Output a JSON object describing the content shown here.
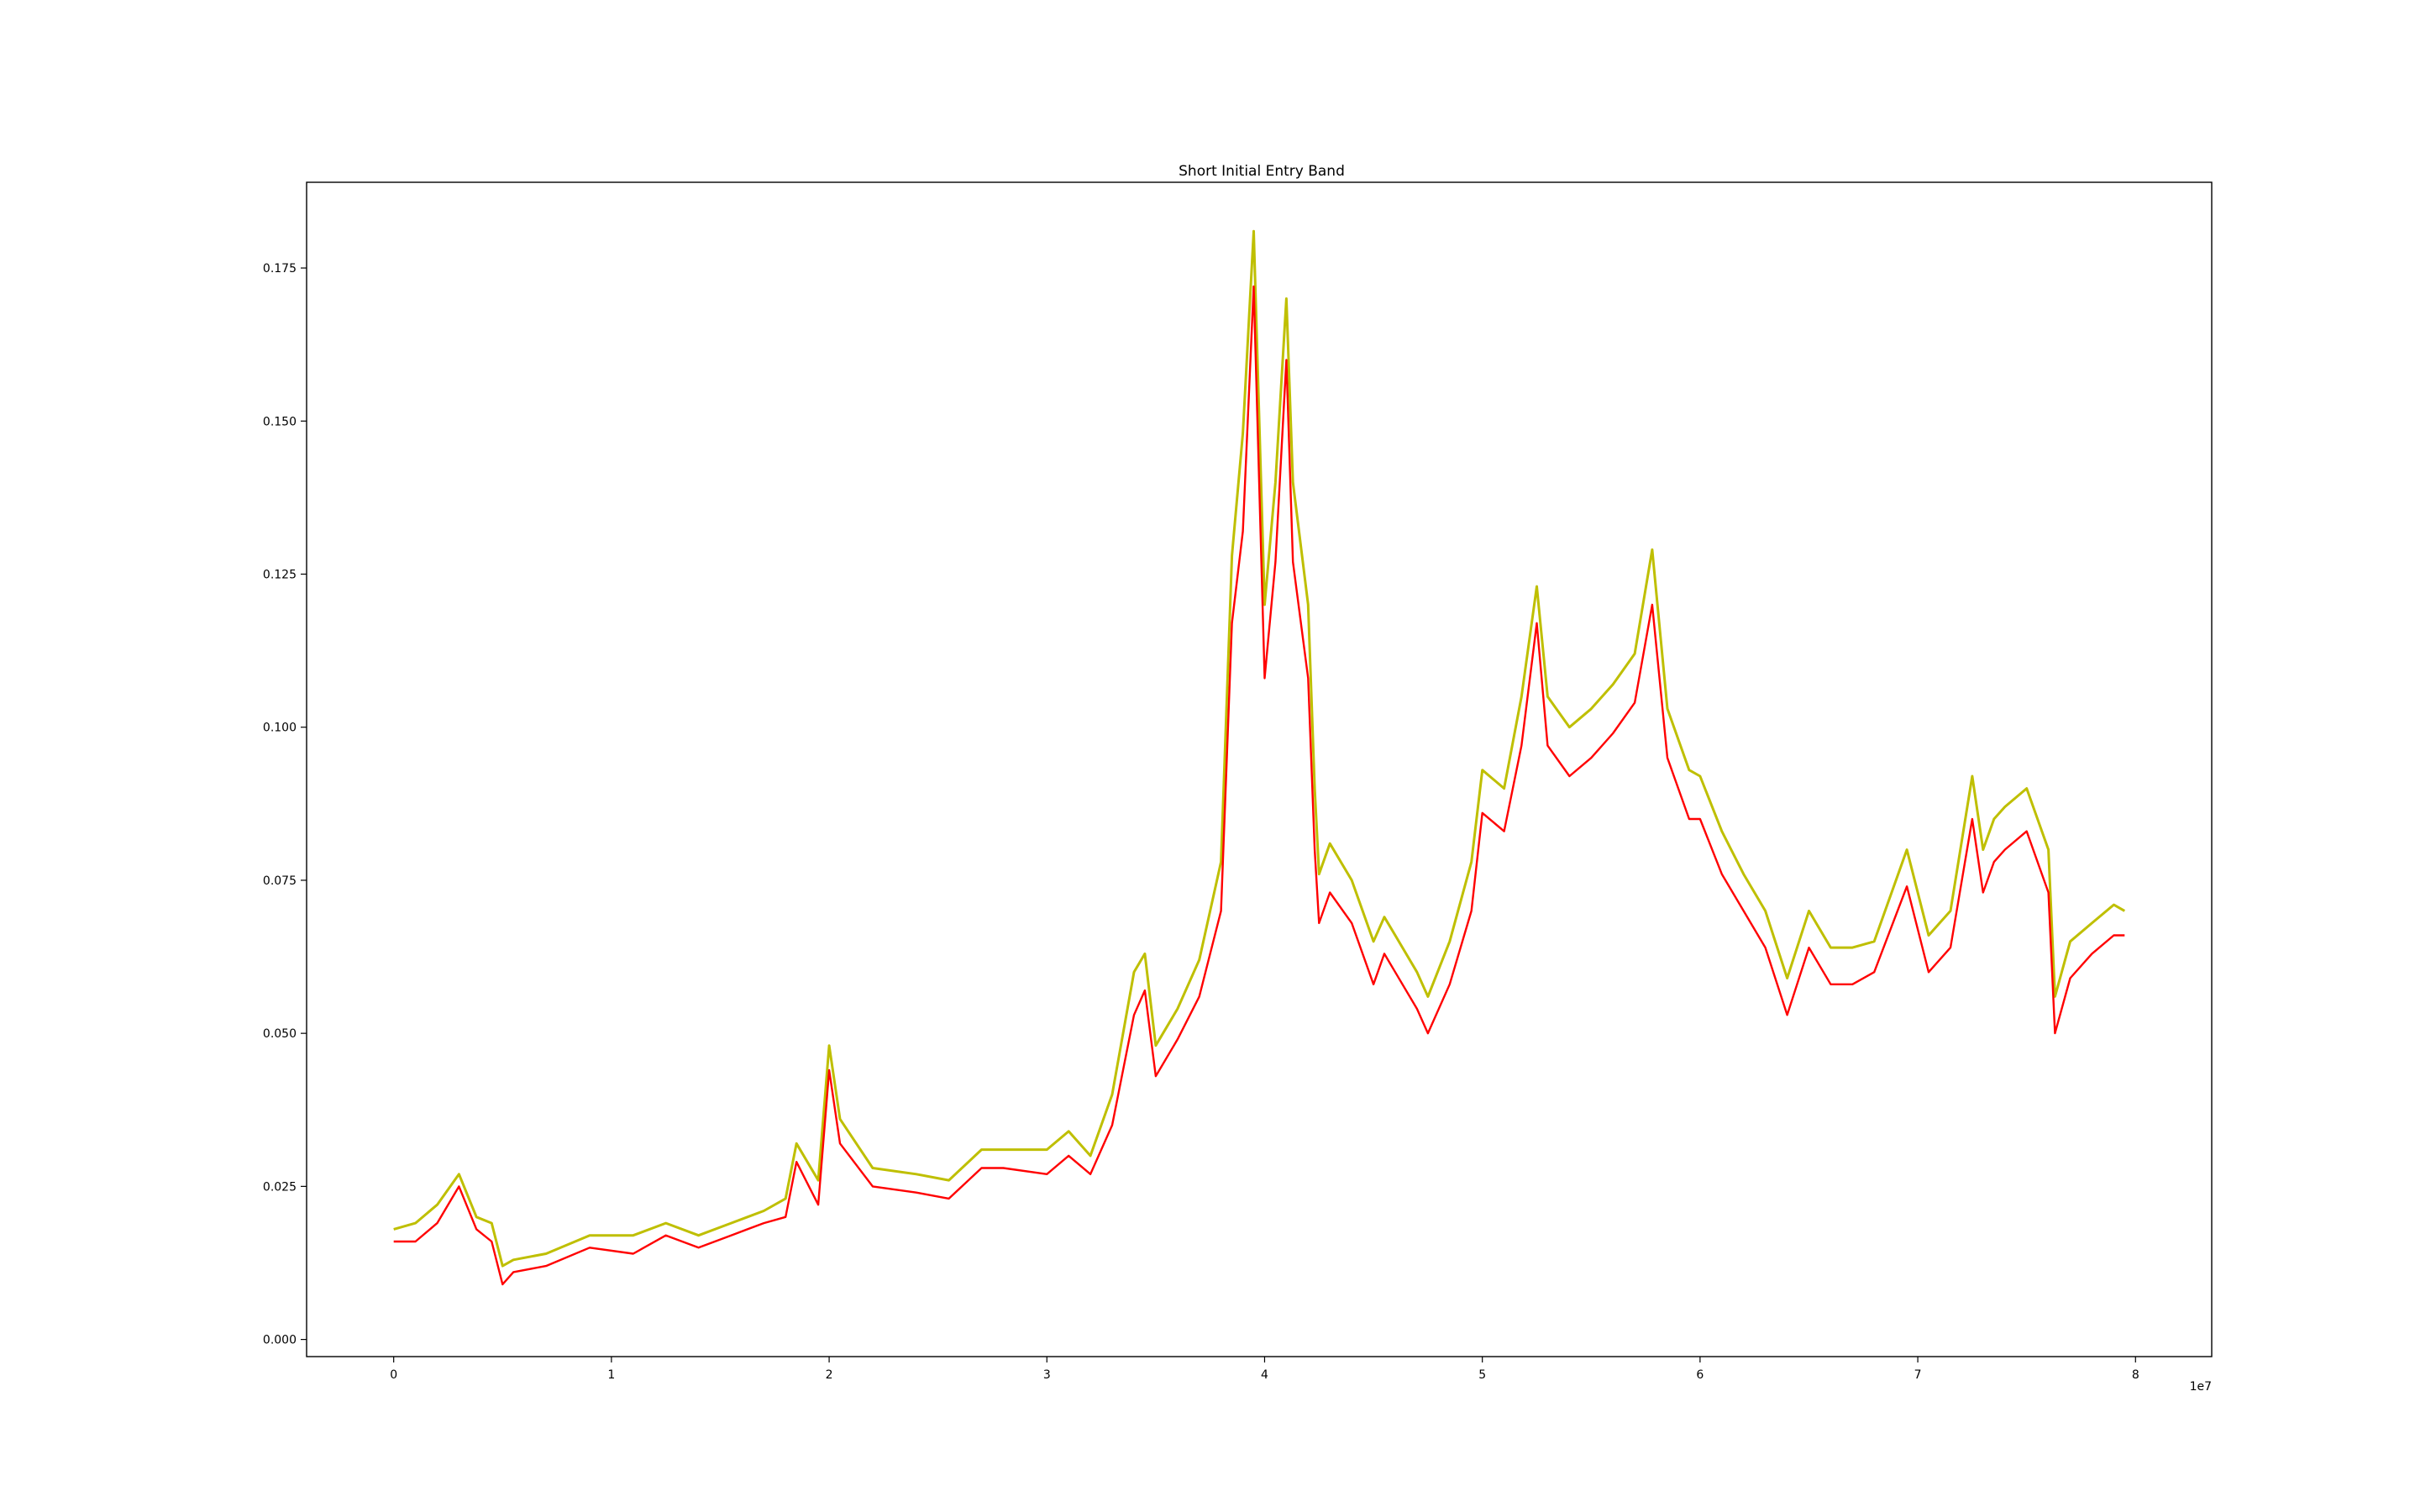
{
  "chart_data": {
    "type": "line",
    "title": "Short Initial Entry Band",
    "xlabel": "",
    "ylabel": "",
    "x_offset_label": "1e7",
    "xlim": [
      -0.4,
      8.35
    ],
    "ylim": [
      -0.0028,
      0.189
    ],
    "x_ticks": [
      0,
      1,
      2,
      3,
      4,
      5,
      6,
      7,
      8
    ],
    "x_tick_labels": [
      "0",
      "1",
      "2",
      "3",
      "4",
      "5",
      "6",
      "7",
      "8"
    ],
    "y_ticks": [
      0.0,
      0.025,
      0.05,
      0.075,
      0.1,
      0.125,
      0.15,
      0.175
    ],
    "y_tick_labels": [
      "0.000",
      "0.025",
      "0.050",
      "0.075",
      "0.100",
      "0.125",
      "0.150",
      "0.175"
    ],
    "grid": false,
    "legend": "none",
    "colors": {
      "upper": "#bfbf00",
      "lower": "#ff0000"
    },
    "series": [
      {
        "color": "#bfbf00",
        "x": [
          0,
          0.1,
          0.2,
          0.3,
          0.38,
          0.45,
          0.5,
          0.55,
          0.7,
          0.9,
          1.1,
          1.25,
          1.4,
          1.55,
          1.7,
          1.8,
          1.85,
          1.95,
          2.0,
          2.05,
          2.2,
          2.4,
          2.55,
          2.7,
          2.8,
          3.0,
          3.1,
          3.2,
          3.3,
          3.4,
          3.45,
          3.5,
          3.6,
          3.7,
          3.8,
          3.85,
          3.9,
          3.95,
          4.0,
          4.05,
          4.1,
          4.13,
          4.2,
          4.23,
          4.25,
          4.3,
          4.4,
          4.5,
          4.55,
          4.6,
          4.7,
          4.75,
          4.85,
          4.95,
          5.0,
          5.1,
          5.18,
          5.25,
          5.3,
          5.4,
          5.5,
          5.6,
          5.7,
          5.78,
          5.85,
          5.95,
          6.0,
          6.1,
          6.2,
          6.3,
          6.4,
          6.5,
          6.6,
          6.7,
          6.8,
          6.95,
          7.05,
          7.15,
          7.25,
          7.3,
          7.35,
          7.4,
          7.5,
          7.6,
          7.63,
          7.7,
          7.8,
          7.9,
          7.95
        ],
        "y": [
          0.018,
          0.019,
          0.022,
          0.027,
          0.02,
          0.019,
          0.012,
          0.013,
          0.014,
          0.017,
          0.017,
          0.019,
          0.017,
          0.019,
          0.021,
          0.023,
          0.032,
          0.026,
          0.048,
          0.036,
          0.028,
          0.027,
          0.026,
          0.031,
          0.031,
          0.031,
          0.034,
          0.03,
          0.04,
          0.06,
          0.063,
          0.048,
          0.054,
          0.062,
          0.078,
          0.128,
          0.148,
          0.181,
          0.12,
          0.14,
          0.17,
          0.14,
          0.12,
          0.09,
          0.076,
          0.081,
          0.075,
          0.065,
          0.069,
          0.066,
          0.06,
          0.056,
          0.065,
          0.078,
          0.093,
          0.09,
          0.105,
          0.123,
          0.105,
          0.1,
          0.103,
          0.107,
          0.112,
          0.129,
          0.103,
          0.093,
          0.092,
          0.083,
          0.076,
          0.07,
          0.059,
          0.07,
          0.064,
          0.064,
          0.065,
          0.08,
          0.066,
          0.07,
          0.092,
          0.08,
          0.085,
          0.087,
          0.09,
          0.08,
          0.056,
          0.065,
          0.068,
          0.071,
          0.07
        ]
      },
      {
        "color": "#ff0000",
        "x": [
          0,
          0.1,
          0.2,
          0.3,
          0.38,
          0.45,
          0.5,
          0.55,
          0.7,
          0.9,
          1.1,
          1.25,
          1.4,
          1.55,
          1.7,
          1.8,
          1.85,
          1.95,
          2.0,
          2.05,
          2.2,
          2.4,
          2.55,
          2.7,
          2.8,
          3.0,
          3.1,
          3.2,
          3.3,
          3.4,
          3.45,
          3.5,
          3.6,
          3.7,
          3.8,
          3.85,
          3.9,
          3.95,
          4.0,
          4.05,
          4.1,
          4.13,
          4.2,
          4.23,
          4.25,
          4.3,
          4.4,
          4.5,
          4.55,
          4.6,
          4.7,
          4.75,
          4.85,
          4.95,
          5.0,
          5.1,
          5.18,
          5.25,
          5.3,
          5.4,
          5.5,
          5.6,
          5.7,
          5.78,
          5.85,
          5.95,
          6.0,
          6.1,
          6.2,
          6.3,
          6.4,
          6.5,
          6.6,
          6.7,
          6.8,
          6.95,
          7.05,
          7.15,
          7.25,
          7.3,
          7.35,
          7.4,
          7.5,
          7.6,
          7.63,
          7.7,
          7.8,
          7.9,
          7.95
        ],
        "y": [
          0.016,
          0.016,
          0.019,
          0.025,
          0.018,
          0.016,
          0.009,
          0.011,
          0.012,
          0.015,
          0.014,
          0.017,
          0.015,
          0.017,
          0.019,
          0.02,
          0.029,
          0.022,
          0.044,
          0.032,
          0.025,
          0.024,
          0.023,
          0.028,
          0.028,
          0.027,
          0.03,
          0.027,
          0.035,
          0.053,
          0.057,
          0.043,
          0.049,
          0.056,
          0.07,
          0.117,
          0.132,
          0.172,
          0.108,
          0.127,
          0.16,
          0.127,
          0.108,
          0.08,
          0.068,
          0.073,
          0.068,
          0.058,
          0.063,
          0.06,
          0.054,
          0.05,
          0.058,
          0.07,
          0.086,
          0.083,
          0.097,
          0.117,
          0.097,
          0.092,
          0.095,
          0.099,
          0.104,
          0.12,
          0.095,
          0.085,
          0.085,
          0.076,
          0.07,
          0.064,
          0.053,
          0.064,
          0.058,
          0.058,
          0.06,
          0.074,
          0.06,
          0.064,
          0.085,
          0.073,
          0.078,
          0.08,
          0.083,
          0.073,
          0.05,
          0.059,
          0.063,
          0.066,
          0.066
        ]
      }
    ]
  }
}
